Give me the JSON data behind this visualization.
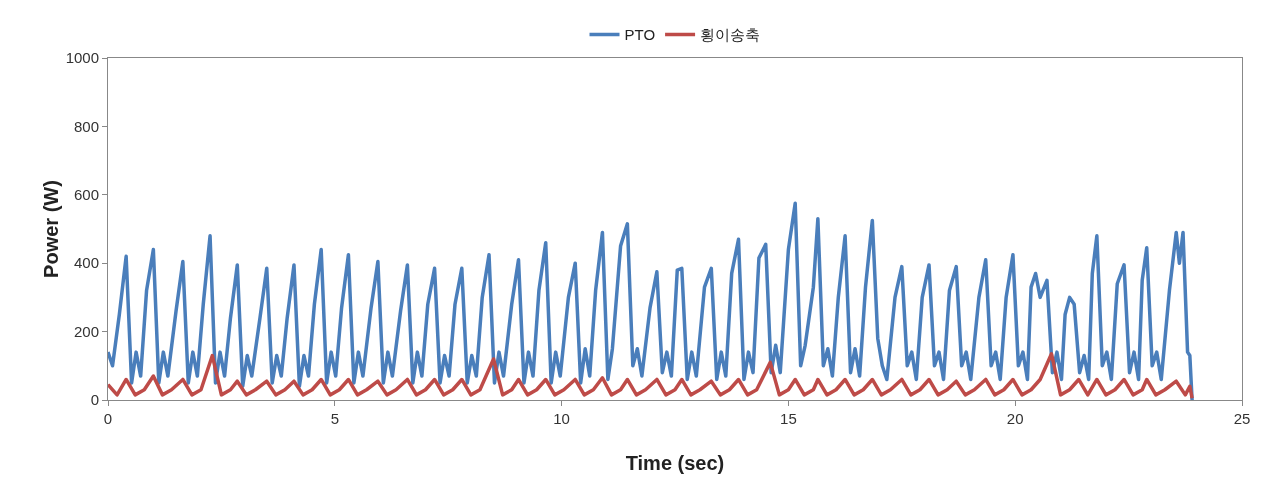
{
  "chart_data": {
    "type": "line",
    "xlabel": "Time (sec)",
    "ylabel": "Power (W)",
    "xlim": [
      0,
      25
    ],
    "xticks": [
      0,
      5,
      10,
      15,
      20,
      25
    ],
    "ylim": [
      0,
      1000
    ],
    "yticks": [
      0,
      200,
      400,
      600,
      800,
      1000
    ],
    "grid": false,
    "legend": "top",
    "marker": "none",
    "line_style": "solid",
    "series": [
      {
        "name": "PTO",
        "color": "#4a7ebb",
        "x": [
          0,
          0.1,
          0.25,
          0.4,
          0.52,
          0.62,
          0.72,
          0.85,
          1.0,
          1.12,
          1.22,
          1.32,
          1.5,
          1.65,
          1.77,
          1.87,
          1.97,
          2.1,
          2.25,
          2.37,
          2.47,
          2.57,
          2.7,
          2.85,
          2.97,
          3.07,
          3.17,
          3.35,
          3.5,
          3.62,
          3.72,
          3.82,
          3.95,
          4.1,
          4.22,
          4.32,
          4.42,
          4.55,
          4.7,
          4.82,
          4.92,
          5.02,
          5.15,
          5.3,
          5.42,
          5.52,
          5.62,
          5.8,
          5.95,
          6.07,
          6.17,
          6.27,
          6.45,
          6.6,
          6.72,
          6.82,
          6.92,
          7.05,
          7.2,
          7.32,
          7.42,
          7.52,
          7.65,
          7.8,
          7.92,
          8.02,
          8.12,
          8.25,
          8.4,
          8.52,
          8.62,
          8.72,
          8.9,
          9.05,
          9.17,
          9.27,
          9.37,
          9.5,
          9.65,
          9.77,
          9.87,
          9.97,
          10.15,
          10.3,
          10.42,
          10.52,
          10.62,
          10.75,
          10.9,
          11.02,
          11.12,
          11.3,
          11.45,
          11.57,
          11.67,
          11.77,
          11.95,
          12.1,
          12.22,
          12.32,
          12.42,
          12.55,
          12.65,
          12.77,
          12.87,
          12.97,
          13.15,
          13.3,
          13.42,
          13.52,
          13.62,
          13.75,
          13.9,
          14.02,
          14.12,
          14.22,
          14.35,
          14.5,
          14.62,
          14.72,
          14.82,
          15.0,
          15.15,
          15.27,
          15.37,
          15.55,
          15.65,
          15.77,
          15.87,
          15.97,
          16.1,
          16.25,
          16.37,
          16.47,
          16.57,
          16.7,
          16.85,
          16.97,
          17.07,
          17.17,
          17.35,
          17.5,
          17.62,
          17.72,
          17.82,
          17.95,
          18.1,
          18.22,
          18.32,
          18.42,
          18.55,
          18.7,
          18.82,
          18.92,
          19.02,
          19.2,
          19.35,
          19.47,
          19.57,
          19.67,
          19.8,
          19.95,
          20.07,
          20.17,
          20.27,
          20.35,
          20.45,
          20.55,
          20.7,
          20.82,
          20.92,
          21.02,
          21.1,
          21.2,
          21.3,
          21.42,
          21.52,
          21.62,
          21.7,
          21.8,
          21.92,
          22.02,
          22.12,
          22.25,
          22.4,
          22.52,
          22.62,
          22.72,
          22.8,
          22.9,
          23.02,
          23.12,
          23.22,
          23.4,
          23.55,
          23.62,
          23.7,
          23.8,
          23.85,
          23.9
        ],
        "values": [
          140,
          100,
          250,
          420,
          50,
          140,
          70,
          320,
          440,
          50,
          140,
          70,
          260,
          405,
          50,
          140,
          70,
          280,
          480,
          50,
          140,
          70,
          240,
          395,
          40,
          130,
          70,
          240,
          385,
          50,
          130,
          70,
          240,
          395,
          40,
          130,
          70,
          280,
          440,
          50,
          140,
          70,
          270,
          425,
          50,
          140,
          70,
          270,
          405,
          50,
          140,
          70,
          260,
          395,
          50,
          140,
          70,
          280,
          385,
          50,
          130,
          70,
          280,
          385,
          50,
          130,
          70,
          300,
          425,
          50,
          140,
          70,
          280,
          410,
          50,
          140,
          70,
          320,
          460,
          50,
          140,
          70,
          300,
          400,
          50,
          150,
          70,
          320,
          490,
          60,
          150,
          450,
          515,
          100,
          150,
          70,
          270,
          375,
          80,
          140,
          70,
          380,
          385,
          60,
          140,
          70,
          330,
          385,
          60,
          140,
          70,
          370,
          470,
          60,
          140,
          80,
          415,
          455,
          80,
          160,
          80,
          440,
          575,
          100,
          160,
          330,
          530,
          100,
          150,
          70,
          300,
          480,
          80,
          150,
          70,
          330,
          525,
          180,
          100,
          60,
          300,
          390,
          100,
          140,
          60,
          300,
          395,
          100,
          140,
          60,
          320,
          390,
          100,
          140,
          60,
          300,
          410,
          100,
          140,
          60,
          300,
          425,
          100,
          140,
          60,
          330,
          370,
          300,
          350,
          80,
          140,
          60,
          250,
          300,
          280,
          80,
          130,
          60,
          370,
          480,
          100,
          140,
          60,
          340,
          395,
          80,
          140,
          60,
          350,
          445,
          100,
          140,
          60,
          320,
          490,
          400,
          490,
          140,
          130,
          0
        ]
      },
      {
        "name": "횡이송축",
        "color": "#be4b48",
        "x": [
          0,
          0.2,
          0.4,
          0.6,
          0.8,
          1.0,
          1.2,
          1.4,
          1.65,
          1.85,
          2.05,
          2.3,
          2.5,
          2.7,
          2.85,
          3.05,
          3.25,
          3.5,
          3.7,
          3.9,
          4.1,
          4.3,
          4.5,
          4.7,
          4.9,
          5.1,
          5.3,
          5.5,
          5.7,
          5.95,
          6.15,
          6.35,
          6.6,
          6.8,
          7.0,
          7.2,
          7.4,
          7.6,
          7.8,
          8.0,
          8.2,
          8.5,
          8.7,
          8.9,
          9.05,
          9.25,
          9.45,
          9.65,
          9.85,
          10.05,
          10.3,
          10.5,
          10.7,
          10.9,
          11.1,
          11.3,
          11.45,
          11.65,
          11.85,
          12.1,
          12.3,
          12.5,
          12.65,
          12.85,
          13.05,
          13.3,
          13.5,
          13.7,
          13.9,
          14.1,
          14.3,
          14.6,
          14.8,
          15.0,
          15.15,
          15.35,
          15.55,
          15.65,
          15.85,
          16.05,
          16.25,
          16.45,
          16.65,
          16.85,
          17.05,
          17.25,
          17.5,
          17.7,
          17.9,
          18.1,
          18.3,
          18.5,
          18.7,
          18.9,
          19.1,
          19.35,
          19.55,
          19.75,
          19.95,
          20.15,
          20.35,
          20.55,
          20.8,
          21.0,
          21.2,
          21.4,
          21.6,
          21.8,
          22.0,
          22.2,
          22.4,
          22.6,
          22.8,
          22.9,
          23.1,
          23.3,
          23.55,
          23.75,
          23.85,
          23.9
        ],
        "values": [
          45,
          15,
          60,
          15,
          30,
          70,
          15,
          30,
          60,
          15,
          30,
          130,
          15,
          30,
          55,
          15,
          30,
          55,
          15,
          30,
          55,
          15,
          30,
          60,
          15,
          30,
          60,
          15,
          30,
          55,
          15,
          30,
          60,
          15,
          30,
          60,
          15,
          30,
          60,
          15,
          30,
          120,
          15,
          30,
          60,
          15,
          30,
          60,
          15,
          30,
          60,
          15,
          30,
          65,
          15,
          30,
          60,
          15,
          30,
          60,
          15,
          30,
          60,
          15,
          30,
          55,
          15,
          30,
          60,
          15,
          30,
          110,
          15,
          30,
          60,
          15,
          30,
          60,
          15,
          30,
          60,
          15,
          30,
          60,
          15,
          30,
          60,
          15,
          30,
          60,
          15,
          30,
          55,
          15,
          30,
          60,
          15,
          30,
          60,
          15,
          30,
          60,
          135,
          15,
          30,
          60,
          15,
          60,
          15,
          30,
          60,
          15,
          30,
          60,
          15,
          30,
          55,
          15,
          40,
          5
        ]
      }
    ]
  }
}
